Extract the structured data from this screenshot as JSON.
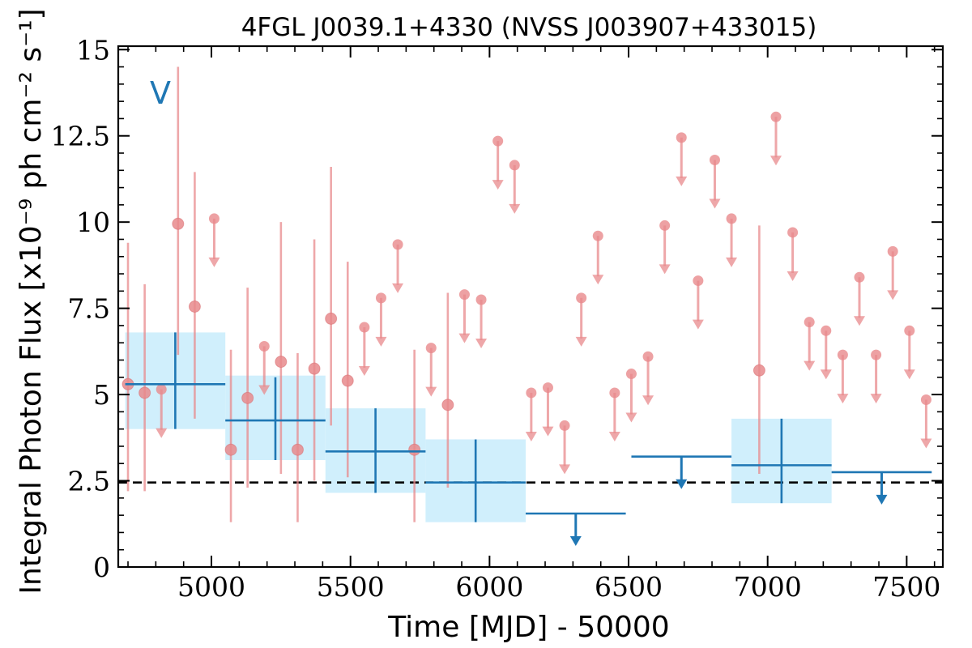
{
  "chart_data": {
    "type": "scatter",
    "title": "4FGL J0039.1+4330 (NVSS J003907+433015)",
    "xlabel": "Time [MJD] - 50000",
    "ylabel": "Integral Photon Flux [x10⁻⁹ ph cm⁻² s⁻¹]",
    "panel_letter": "V",
    "xlim": [
      4665,
      7630
    ],
    "ylim": [
      0,
      15.1
    ],
    "x_ticks": [
      5000,
      5500,
      6000,
      6500,
      7000,
      7500
    ],
    "x_tick_labels": [
      "5000",
      "5500",
      "6000",
      "6500",
      "7000",
      "7500"
    ],
    "y_ticks": [
      0,
      2.5,
      5,
      7.5,
      10,
      12.5,
      15
    ],
    "y_tick_labels": [
      "0",
      "2.5",
      "5",
      "7.5",
      "10",
      "12.5",
      "15"
    ],
    "grid": false,
    "reference_line": {
      "y": 2.45,
      "style": "dashed",
      "color": "#000000"
    },
    "colors": {
      "short_bins": "#e8898c",
      "long_bins": "#1f77b4",
      "long_bin_band": "#cdeefc"
    },
    "series": [
      {
        "kind": "short_bins_detections",
        "points": [
          {
            "x": 4700,
            "y": 5.3,
            "ylo": 2.2,
            "yhi": 9.4
          },
          {
            "x": 4760,
            "y": 5.05,
            "ylo": 2.2,
            "yhi": 8.2
          },
          {
            "x": 4880,
            "y": 9.95,
            "ylo": 6.15,
            "yhi": 14.5
          },
          {
            "x": 4940,
            "y": 7.55,
            "ylo": 4.3,
            "yhi": 11.45
          },
          {
            "x": 5070,
            "y": 3.4,
            "ylo": 1.3,
            "yhi": 6.3
          },
          {
            "x": 5130,
            "y": 4.9,
            "ylo": 2.3,
            "yhi": 8.1
          },
          {
            "x": 5250,
            "y": 5.95,
            "ylo": 2.7,
            "yhi": 10.0
          },
          {
            "x": 5310,
            "y": 3.4,
            "ylo": 1.3,
            "yhi": 6.2
          },
          {
            "x": 5370,
            "y": 5.75,
            "ylo": 2.5,
            "yhi": 9.5
          },
          {
            "x": 5430,
            "y": 7.2,
            "ylo": 4.1,
            "yhi": 11.6
          },
          {
            "x": 5490,
            "y": 5.4,
            "ylo": 2.6,
            "yhi": 8.85
          },
          {
            "x": 5730,
            "y": 3.4,
            "ylo": 1.3,
            "yhi": 6.3
          },
          {
            "x": 5850,
            "y": 4.7,
            "ylo": 2.3,
            "yhi": 7.95
          },
          {
            "x": 6970,
            "y": 5.7,
            "ylo": 2.7,
            "yhi": 9.9
          }
        ]
      },
      {
        "kind": "short_bins_upper_limits",
        "points": [
          {
            "x": 4820,
            "y": 5.15
          },
          {
            "x": 5010,
            "y": 10.1
          },
          {
            "x": 5190,
            "y": 6.4
          },
          {
            "x": 5550,
            "y": 6.95
          },
          {
            "x": 5610,
            "y": 7.8
          },
          {
            "x": 5670,
            "y": 9.35
          },
          {
            "x": 5790,
            "y": 6.35
          },
          {
            "x": 5910,
            "y": 7.9
          },
          {
            "x": 5970,
            "y": 7.75
          },
          {
            "x": 6030,
            "y": 12.35
          },
          {
            "x": 6090,
            "y": 11.65
          },
          {
            "x": 6150,
            "y": 5.05
          },
          {
            "x": 6210,
            "y": 5.2
          },
          {
            "x": 6270,
            "y": 4.1
          },
          {
            "x": 6330,
            "y": 7.8
          },
          {
            "x": 6390,
            "y": 9.6
          },
          {
            "x": 6450,
            "y": 5.05
          },
          {
            "x": 6510,
            "y": 5.6
          },
          {
            "x": 6570,
            "y": 6.1
          },
          {
            "x": 6630,
            "y": 9.9
          },
          {
            "x": 6690,
            "y": 12.45
          },
          {
            "x": 6750,
            "y": 8.3
          },
          {
            "x": 6810,
            "y": 11.8
          },
          {
            "x": 6870,
            "y": 10.1
          },
          {
            "x": 7030,
            "y": 13.05
          },
          {
            "x": 7090,
            "y": 9.7
          },
          {
            "x": 7150,
            "y": 7.1
          },
          {
            "x": 7210,
            "y": 6.85
          },
          {
            "x": 7270,
            "y": 6.15
          },
          {
            "x": 7330,
            "y": 8.4
          },
          {
            "x": 7390,
            "y": 6.15
          },
          {
            "x": 7450,
            "y": 9.15
          },
          {
            "x": 7510,
            "y": 6.85
          },
          {
            "x": 7570,
            "y": 4.85
          }
        ]
      },
      {
        "kind": "long_bins_detections",
        "points": [
          {
            "x0": 4690,
            "x1": 5050,
            "xc": 4870,
            "y": 5.3,
            "ylo": 4.0,
            "yhi": 6.8,
            "band_lo": 4.0,
            "band_hi": 6.8
          },
          {
            "x0": 5050,
            "x1": 5410,
            "xc": 5230,
            "y": 4.25,
            "ylo": 3.1,
            "yhi": 5.5,
            "band_lo": 3.1,
            "band_hi": 5.55
          },
          {
            "x0": 5410,
            "x1": 5770,
            "xc": 5590,
            "y": 3.35,
            "ylo": 2.15,
            "yhi": 4.6,
            "band_lo": 2.15,
            "band_hi": 4.6
          },
          {
            "x0": 5770,
            "x1": 6130,
            "xc": 5950,
            "y": 2.45,
            "ylo": 1.3,
            "yhi": 3.7,
            "band_lo": 1.3,
            "band_hi": 3.7
          },
          {
            "x0": 6870,
            "x1": 7230,
            "xc": 7050,
            "y": 2.95,
            "ylo": 1.85,
            "yhi": 4.3,
            "band_lo": 1.85,
            "band_hi": 4.3
          }
        ]
      },
      {
        "kind": "long_bins_upper_limits",
        "points": [
          {
            "x0": 6130,
            "x1": 6490,
            "xc": 6310,
            "y": 1.55
          },
          {
            "x0": 6510,
            "x1": 6870,
            "xc": 6690,
            "y": 3.2
          },
          {
            "x0": 7230,
            "x1": 7590,
            "xc": 7410,
            "y": 2.75
          }
        ]
      }
    ]
  }
}
